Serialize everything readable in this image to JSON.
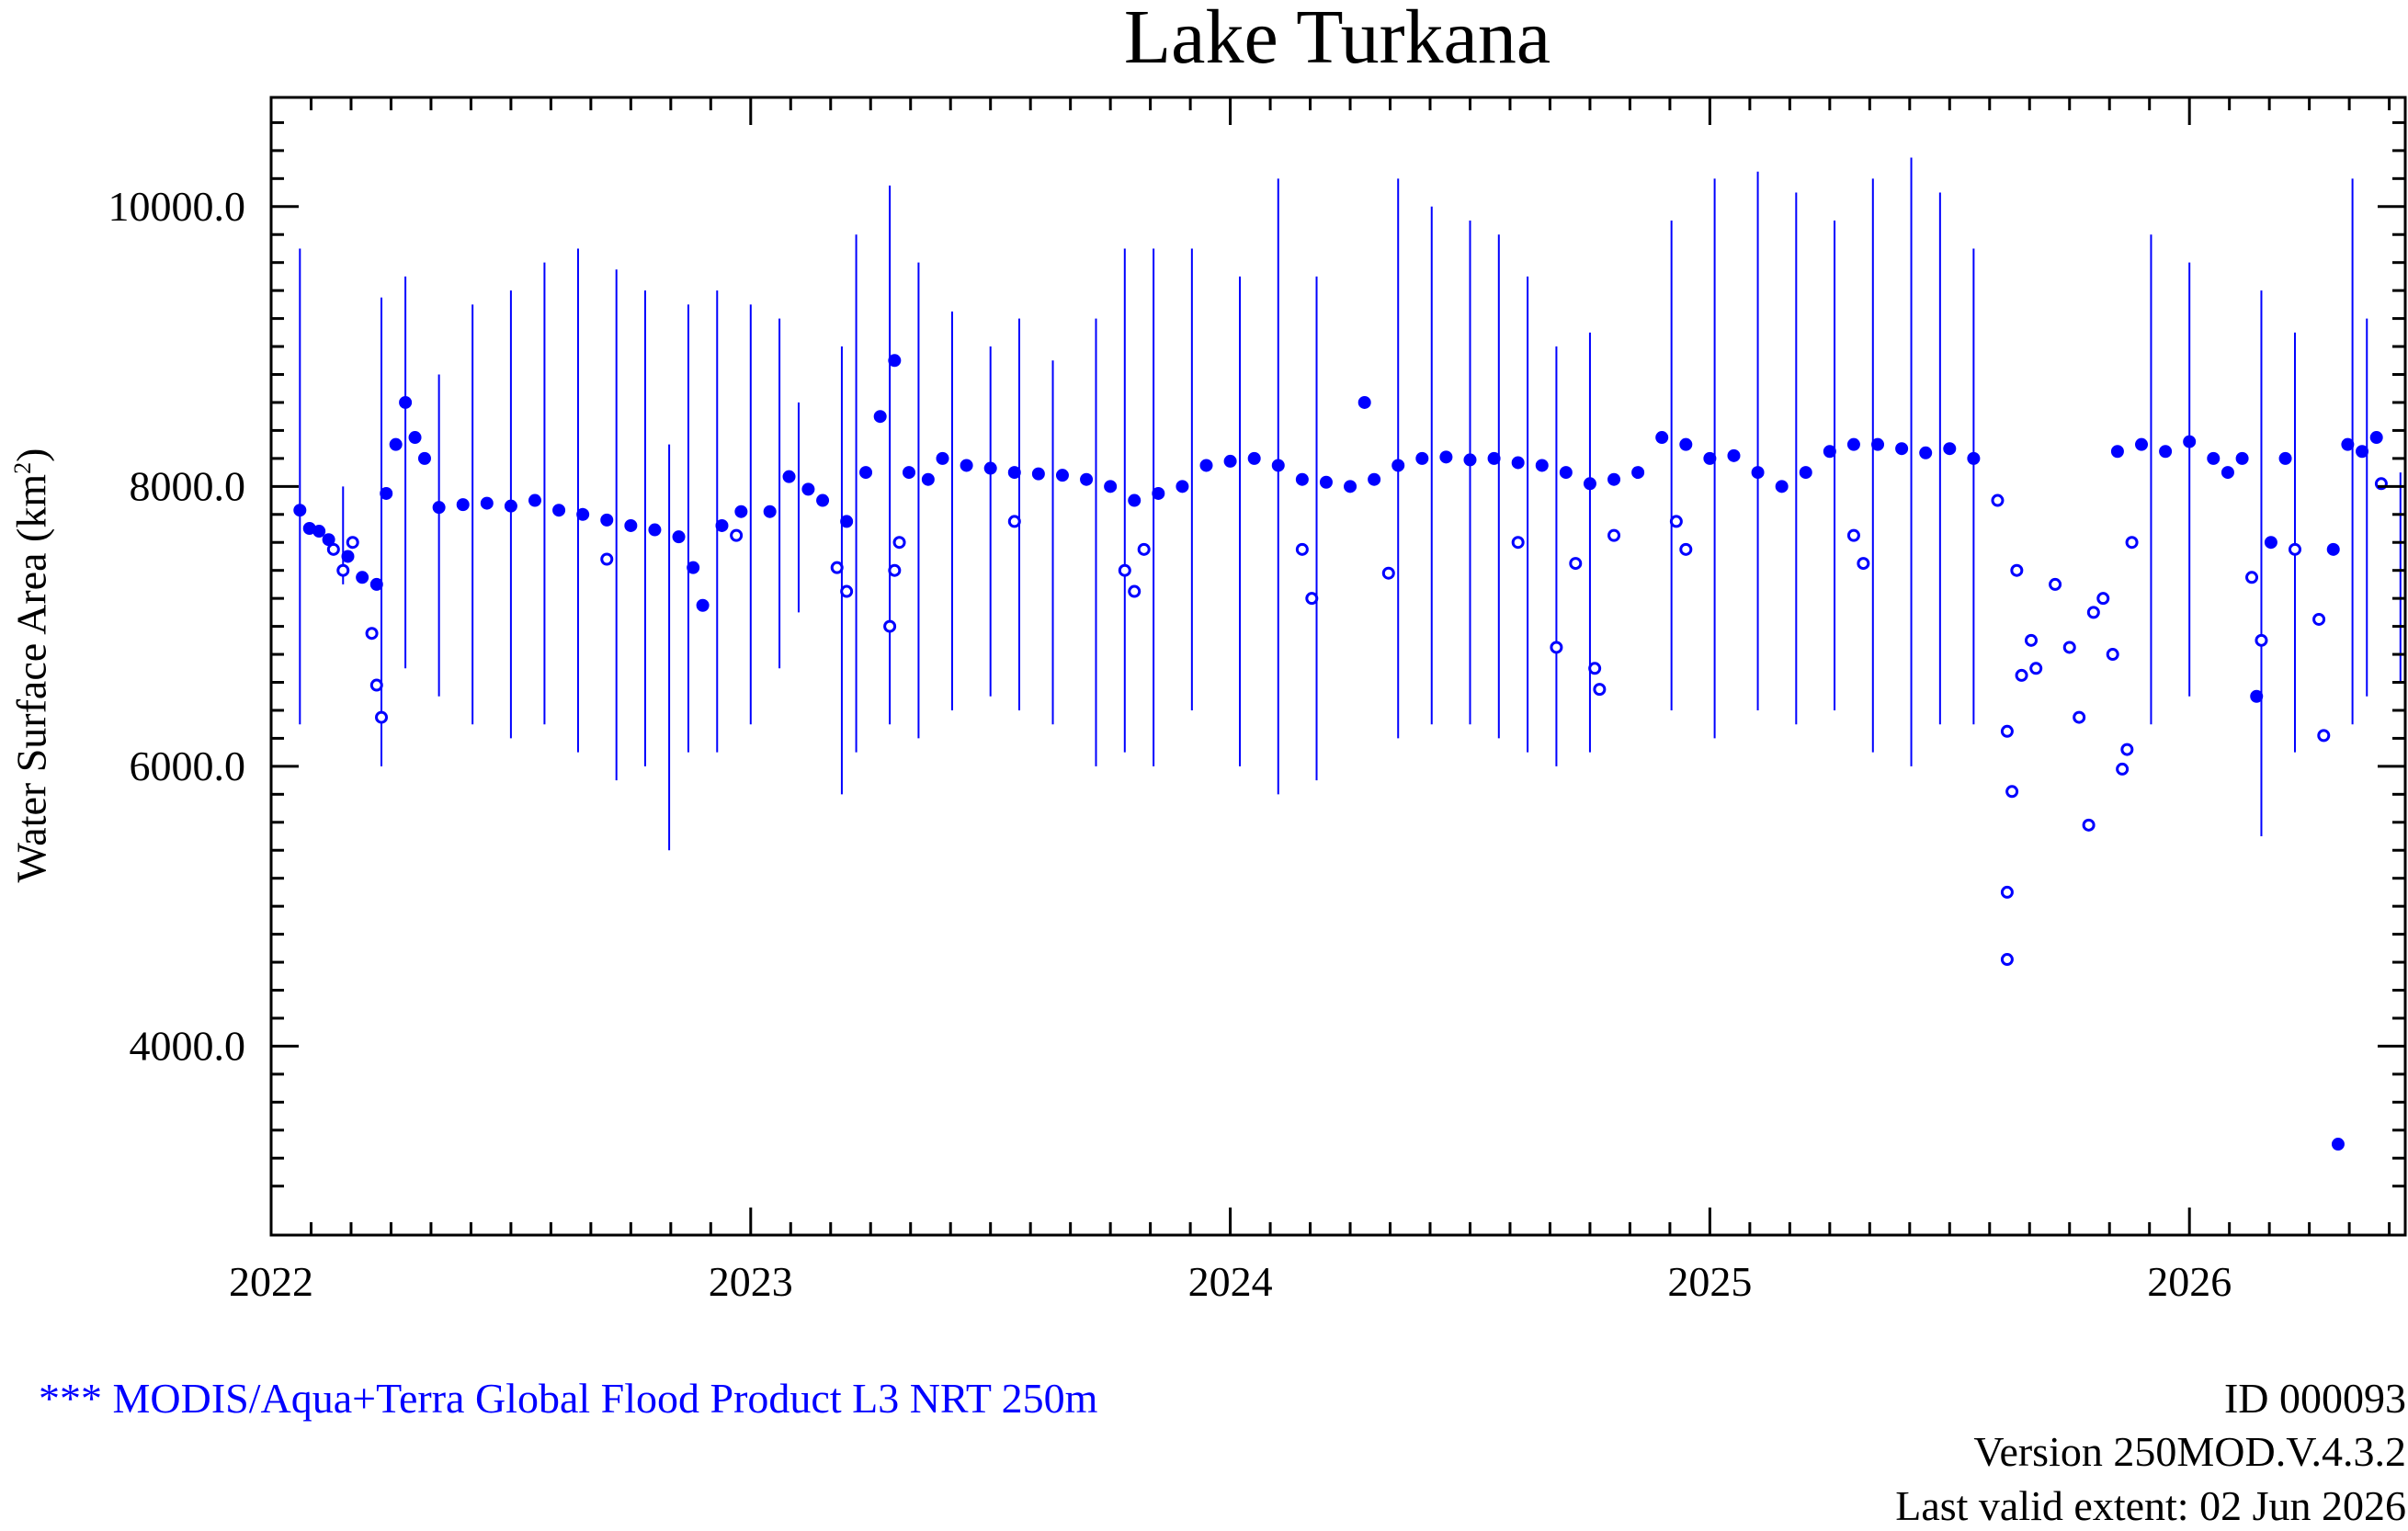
{
  "page": {
    "title": "Lake Turkana",
    "source": "*** MODIS/Aqua+Terra Global Flood Product L3 NRT 250m",
    "id": "ID 000093",
    "version": "Version 250MOD.V.4.3.2",
    "last_valid": "Last valid extent: 02 Jun 2026"
  },
  "colors": {
    "series": "#0000ff",
    "axis": "#000000"
  },
  "chart_data": {
    "type": "scatter",
    "title": "Lake Turkana",
    "ylabel_text": "Water Surface Area (km",
    "ylabel_sup": "2",
    "ylabel_close": ")",
    "xlabel": "",
    "xlim": [
      2022.0,
      2026.45
    ],
    "ylim": [
      2650,
      10780
    ],
    "x_ticks": [
      2022,
      2023,
      2024,
      2025,
      2026
    ],
    "x_tick_labels": [
      "2022",
      "2023",
      "2024",
      "2025",
      "2026"
    ],
    "y_ticks": [
      4000,
      6000,
      8000,
      10000
    ],
    "y_tick_labels": [
      "4000.0",
      "6000.0",
      "8000.0",
      "10000.0"
    ],
    "grid": false,
    "series": [
      {
        "marker": "filled-circle",
        "points": [
          [
            2022.06,
            7830
          ],
          [
            2022.08,
            7700
          ],
          [
            2022.1,
            7680
          ],
          [
            2022.12,
            7620
          ],
          [
            2022.16,
            7500
          ],
          [
            2022.19,
            7350
          ],
          [
            2022.22,
            7300
          ],
          [
            2022.24,
            7950
          ],
          [
            2022.26,
            8300
          ],
          [
            2022.28,
            8600
          ],
          [
            2022.3,
            8350
          ],
          [
            2022.32,
            8200
          ],
          [
            2022.35,
            7850
          ],
          [
            2022.4,
            7870
          ],
          [
            2022.45,
            7880
          ],
          [
            2022.5,
            7860
          ],
          [
            2022.55,
            7900
          ],
          [
            2022.6,
            7830
          ],
          [
            2022.65,
            7800
          ],
          [
            2022.7,
            7760
          ],
          [
            2022.75,
            7720
          ],
          [
            2022.8,
            7690
          ],
          [
            2022.85,
            7640
          ],
          [
            2022.88,
            7420
          ],
          [
            2022.9,
            7150
          ],
          [
            2022.94,
            7720
          ],
          [
            2022.98,
            7820
          ],
          [
            2023.04,
            7820
          ],
          [
            2023.08,
            8070
          ],
          [
            2023.12,
            7980
          ],
          [
            2023.15,
            7900
          ],
          [
            2023.2,
            7750
          ],
          [
            2023.24,
            8100
          ],
          [
            2023.27,
            8500
          ],
          [
            2023.3,
            8900
          ],
          [
            2023.33,
            8100
          ],
          [
            2023.37,
            8050
          ],
          [
            2023.4,
            8200
          ],
          [
            2023.45,
            8150
          ],
          [
            2023.5,
            8130
          ],
          [
            2023.55,
            8100
          ],
          [
            2023.6,
            8090
          ],
          [
            2023.65,
            8080
          ],
          [
            2023.7,
            8050
          ],
          [
            2023.75,
            8000
          ],
          [
            2023.8,
            7900
          ],
          [
            2023.85,
            7950
          ],
          [
            2023.9,
            8000
          ],
          [
            2023.95,
            8150
          ],
          [
            2024.0,
            8180
          ],
          [
            2024.05,
            8200
          ],
          [
            2024.1,
            8150
          ],
          [
            2024.15,
            8050
          ],
          [
            2024.2,
            8030
          ],
          [
            2024.25,
            8000
          ],
          [
            2024.28,
            8600
          ],
          [
            2024.3,
            8050
          ],
          [
            2024.35,
            8150
          ],
          [
            2024.4,
            8200
          ],
          [
            2024.45,
            8210
          ],
          [
            2024.5,
            8190
          ],
          [
            2024.55,
            8200
          ],
          [
            2024.6,
            8170
          ],
          [
            2024.65,
            8150
          ],
          [
            2024.7,
            8100
          ],
          [
            2024.75,
            8020
          ],
          [
            2024.8,
            8050
          ],
          [
            2024.85,
            8100
          ],
          [
            2024.9,
            8350
          ],
          [
            2024.95,
            8300
          ],
          [
            2025.0,
            8200
          ],
          [
            2025.05,
            8220
          ],
          [
            2025.1,
            8100
          ],
          [
            2025.15,
            8000
          ],
          [
            2025.2,
            8100
          ],
          [
            2025.25,
            8250
          ],
          [
            2025.3,
            8300
          ],
          [
            2025.35,
            8300
          ],
          [
            2025.4,
            8270
          ],
          [
            2025.45,
            8240
          ],
          [
            2025.5,
            8270
          ],
          [
            2025.55,
            8200
          ],
          [
            2025.85,
            8250
          ],
          [
            2025.9,
            8300
          ],
          [
            2025.95,
            8250
          ],
          [
            2026.0,
            8320
          ],
          [
            2026.05,
            8200
          ],
          [
            2026.08,
            8100
          ],
          [
            2026.11,
            8200
          ],
          [
            2026.14,
            6500
          ],
          [
            2026.17,
            7600
          ],
          [
            2026.2,
            8200
          ],
          [
            2026.3,
            7550
          ],
          [
            2026.33,
            8300
          ],
          [
            2026.36,
            8250
          ],
          [
            2026.39,
            8350
          ],
          [
            2026.31,
            3300
          ]
        ]
      },
      {
        "marker": "open-circle",
        "points": [
          [
            2022.13,
            7550
          ],
          [
            2022.15,
            7400
          ],
          [
            2022.17,
            7600
          ],
          [
            2022.21,
            6950
          ],
          [
            2022.22,
            6580
          ],
          [
            2022.23,
            6350
          ],
          [
            2022.7,
            7480
          ],
          [
            2022.97,
            7650
          ],
          [
            2023.18,
            7420
          ],
          [
            2023.2,
            7250
          ],
          [
            2023.29,
            7000
          ],
          [
            2023.3,
            7400
          ],
          [
            2023.31,
            7600
          ],
          [
            2023.55,
            7750
          ],
          [
            2023.78,
            7400
          ],
          [
            2023.8,
            7250
          ],
          [
            2023.82,
            7550
          ],
          [
            2024.15,
            7550
          ],
          [
            2024.17,
            7200
          ],
          [
            2024.33,
            7380
          ],
          [
            2024.6,
            7600
          ],
          [
            2024.68,
            6850
          ],
          [
            2024.72,
            7450
          ],
          [
            2024.76,
            6700
          ],
          [
            2024.77,
            6550
          ],
          [
            2024.8,
            7650
          ],
          [
            2024.93,
            7750
          ],
          [
            2024.95,
            7550
          ],
          [
            2025.3,
            7650
          ],
          [
            2025.32,
            7450
          ],
          [
            2025.6,
            7900
          ],
          [
            2025.62,
            6250
          ],
          [
            2025.63,
            5820
          ],
          [
            2025.62,
            5100
          ],
          [
            2025.62,
            4620
          ],
          [
            2025.64,
            7400
          ],
          [
            2025.65,
            6650
          ],
          [
            2025.67,
            6900
          ],
          [
            2025.68,
            6700
          ],
          [
            2025.72,
            7300
          ],
          [
            2025.75,
            6850
          ],
          [
            2025.77,
            6350
          ],
          [
            2025.79,
            5580
          ],
          [
            2025.8,
            7100
          ],
          [
            2025.82,
            7200
          ],
          [
            2025.84,
            6800
          ],
          [
            2025.86,
            5980
          ],
          [
            2025.87,
            6120
          ],
          [
            2025.88,
            7600
          ],
          [
            2026.13,
            7350
          ],
          [
            2026.15,
            6900
          ],
          [
            2026.22,
            7550
          ],
          [
            2026.27,
            7050
          ],
          [
            2026.28,
            6220
          ],
          [
            2026.4,
            8020
          ]
        ]
      },
      {
        "marker": "vertical-range",
        "ranges": [
          [
            2022.06,
            6300,
            9700
          ],
          [
            2022.15,
            7300,
            8000
          ],
          [
            2022.23,
            6000,
            9350
          ],
          [
            2022.28,
            6700,
            9500
          ],
          [
            2022.35,
            6500,
            8800
          ],
          [
            2022.42,
            6300,
            9300
          ],
          [
            2022.5,
            6200,
            9400
          ],
          [
            2022.57,
            6300,
            9600
          ],
          [
            2022.64,
            6100,
            9700
          ],
          [
            2022.72,
            5900,
            9550
          ],
          [
            2022.78,
            6000,
            9400
          ],
          [
            2022.83,
            5400,
            8300
          ],
          [
            2022.87,
            6100,
            9300
          ],
          [
            2022.93,
            6100,
            9400
          ],
          [
            2023.0,
            6300,
            9300
          ],
          [
            2023.06,
            6700,
            9200
          ],
          [
            2023.1,
            7100,
            8600
          ],
          [
            2023.19,
            5800,
            9000
          ],
          [
            2023.22,
            6100,
            9800
          ],
          [
            2023.29,
            6300,
            10150
          ],
          [
            2023.35,
            6200,
            9600
          ],
          [
            2023.42,
            6400,
            9250
          ],
          [
            2023.5,
            6500,
            9000
          ],
          [
            2023.56,
            6400,
            9200
          ],
          [
            2023.63,
            6300,
            8900
          ],
          [
            2023.72,
            6000,
            9200
          ],
          [
            2023.78,
            6100,
            9700
          ],
          [
            2023.84,
            6000,
            9700
          ],
          [
            2023.92,
            6400,
            9700
          ],
          [
            2024.02,
            6000,
            9500
          ],
          [
            2024.1,
            5800,
            10200
          ],
          [
            2024.18,
            5900,
            9500
          ],
          [
            2024.35,
            6200,
            10200
          ],
          [
            2024.42,
            6300,
            10000
          ],
          [
            2024.5,
            6300,
            9900
          ],
          [
            2024.56,
            6200,
            9800
          ],
          [
            2024.62,
            6100,
            9500
          ],
          [
            2024.68,
            6000,
            9000
          ],
          [
            2024.75,
            6100,
            9100
          ],
          [
            2024.92,
            6400,
            9900
          ],
          [
            2025.01,
            6200,
            10200
          ],
          [
            2025.1,
            6400,
            10250
          ],
          [
            2025.18,
            6300,
            10100
          ],
          [
            2025.26,
            6400,
            9900
          ],
          [
            2025.34,
            6100,
            10200
          ],
          [
            2025.42,
            6000,
            10350
          ],
          [
            2025.48,
            6300,
            10100
          ],
          [
            2025.55,
            6300,
            9700
          ],
          [
            2025.92,
            6300,
            9800
          ],
          [
            2026.0,
            6500,
            9600
          ],
          [
            2026.15,
            5500,
            9400
          ],
          [
            2026.22,
            6100,
            9100
          ],
          [
            2026.34,
            6300,
            10200
          ],
          [
            2026.37,
            6500,
            9200
          ],
          [
            2026.44,
            6600,
            8100
          ]
        ]
      }
    ]
  }
}
